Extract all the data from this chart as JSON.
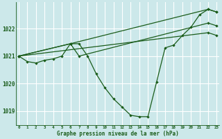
{
  "title": "Graphe pression niveau de la mer (hPa)",
  "bg_color": "#cce8ea",
  "grid_color": "#ffffff",
  "line_color": "#1a5c1a",
  "hours": [
    0,
    1,
    2,
    3,
    4,
    5,
    6,
    7,
    8,
    9,
    10,
    11,
    12,
    13,
    14,
    15,
    16,
    17,
    18,
    19,
    20,
    21,
    22,
    23
  ],
  "main_series": [
    1021.0,
    1020.8,
    1020.75,
    1020.85,
    1020.9,
    1021.0,
    1021.45,
    1021.45,
    1021.0,
    1020.35,
    1019.85,
    1019.45,
    1019.15,
    1018.85,
    1018.8,
    1018.8,
    1020.05,
    1021.3,
    1021.4,
    1021.75,
    1022.05,
    1022.5,
    1022.7,
    1022.6
  ],
  "line2": [
    [
      0,
      1021.0
    ],
    [
      6,
      1021.45
    ],
    [
      7,
      1021.0
    ],
    [
      22,
      1022.2
    ],
    [
      23,
      1022.1
    ]
  ],
  "line3": [
    [
      0,
      1021.0
    ],
    [
      22,
      1021.85
    ],
    [
      23,
      1021.75
    ]
  ],
  "line4": [
    [
      0,
      1021.0
    ],
    [
      6,
      1021.45
    ],
    [
      22,
      1022.7
    ],
    [
      23,
      1022.6
    ]
  ],
  "ylim": [
    1018.5,
    1022.95
  ],
  "yticks": [
    1019,
    1020,
    1021,
    1022
  ],
  "xlim": [
    -0.3,
    23.3
  ]
}
